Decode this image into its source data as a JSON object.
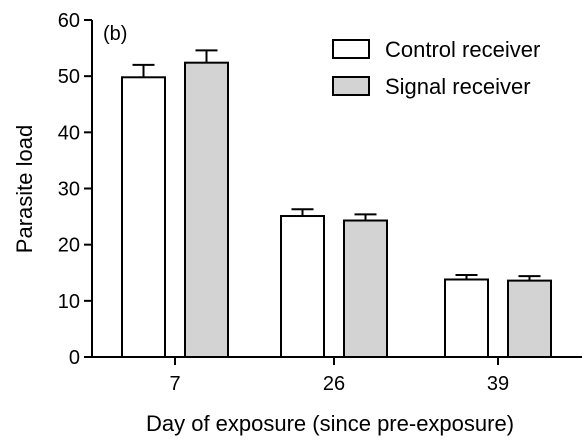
{
  "chart_data": {
    "type": "bar",
    "panel_label": "(b)",
    "categories": [
      "7",
      "26",
      "39"
    ],
    "series": [
      {
        "name": "Control receiver",
        "values": [
          49.8,
          25.1,
          13.8
        ],
        "errors": [
          2.2,
          1.2,
          0.8
        ],
        "color": "#ffffff"
      },
      {
        "name": "Signal receiver",
        "values": [
          52.4,
          24.3,
          13.6
        ],
        "errors": [
          2.2,
          1.1,
          0.8
        ],
        "color": "#d3d3d3"
      }
    ],
    "xlabel": "Day of exposure (since pre-exposure)",
    "ylabel": "Parasite load",
    "ylim": [
      0,
      60
    ],
    "yticks": [
      "0",
      "10",
      "20",
      "30",
      "40",
      "50",
      "60"
    ],
    "grid": false,
    "legend_position": "top-right",
    "edge_color": "#000000"
  }
}
